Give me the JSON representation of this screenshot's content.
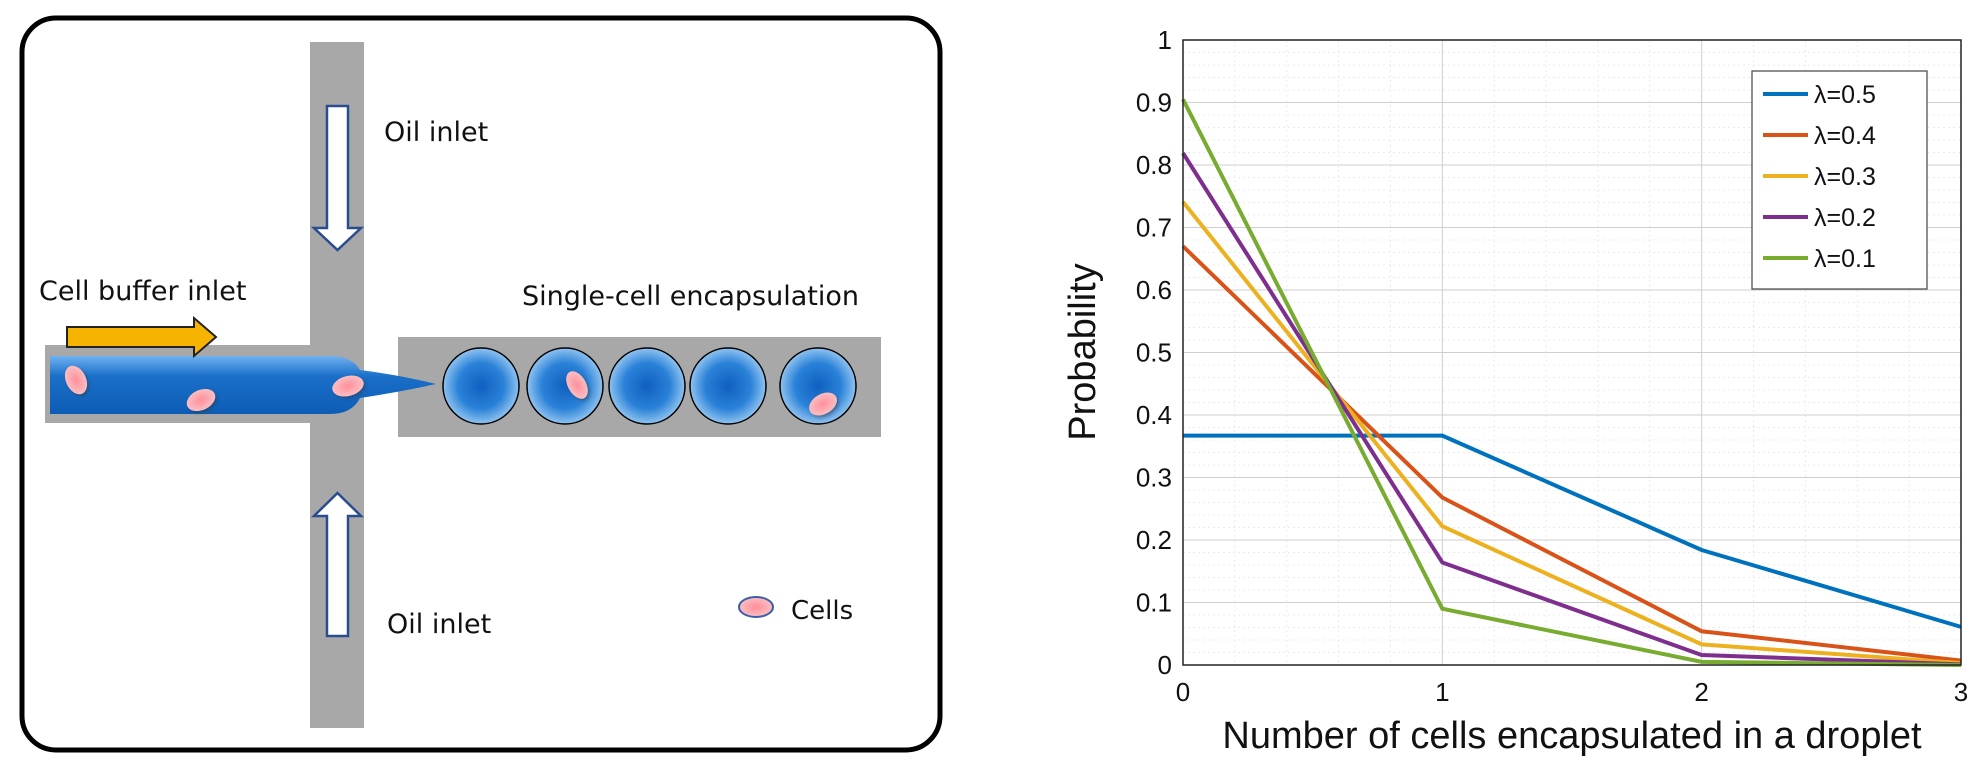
{
  "diagram": {
    "labels": {
      "oil_inlet_top": "Oil inlet",
      "oil_inlet_bottom": "Oil inlet",
      "cell_buffer_inlet": "Cell buffer inlet",
      "single_cell_encapsulation": "Single-cell encapsulation",
      "cells_legend": "Cells"
    },
    "colors": {
      "channel": "#a8a8a8",
      "buffer": "#1a6fc9",
      "droplet": "#1a6fc9",
      "cell": "#f4a3a8",
      "inlet_arrow": "#f6b400",
      "oil_arrow_outline": "#2a4d8f",
      "frame": "#000000"
    },
    "icons": [
      "open-down-arrow-icon",
      "open-up-arrow-icon",
      "yellow-right-arrow-icon",
      "cell-icon"
    ]
  },
  "chart_data": {
    "type": "line",
    "x": [
      0,
      1,
      2,
      3
    ],
    "xlabel": "Number of cells encapsulated in a droplet",
    "ylabel": "Probability",
    "xlim": [
      0,
      3
    ],
    "ylim": [
      0,
      1
    ],
    "x_ticks": [
      "0",
      "1",
      "2",
      "3"
    ],
    "y_ticks": [
      "0",
      "0.1",
      "0.2",
      "0.3",
      "0.4",
      "0.5",
      "0.6",
      "0.7",
      "0.8",
      "0.9",
      "1"
    ],
    "grid": true,
    "minor_grid": true,
    "legend_position": "top-right",
    "series": [
      {
        "name": "λ=0.5",
        "color": "#0072bd",
        "values": [
          0.367,
          0.367,
          0.184,
          0.061
        ]
      },
      {
        "name": "λ=0.4",
        "color": "#d95319",
        "values": [
          0.67,
          0.268,
          0.054,
          0.007
        ]
      },
      {
        "name": "λ=0.3",
        "color": "#edb120",
        "values": [
          0.741,
          0.222,
          0.033,
          0.003
        ]
      },
      {
        "name": "λ=0.2",
        "color": "#7e2f8e",
        "values": [
          0.819,
          0.164,
          0.016,
          0.001
        ]
      },
      {
        "name": "λ=0.1",
        "color": "#77ac30",
        "values": [
          0.905,
          0.09,
          0.005,
          0.0
        ]
      }
    ]
  }
}
